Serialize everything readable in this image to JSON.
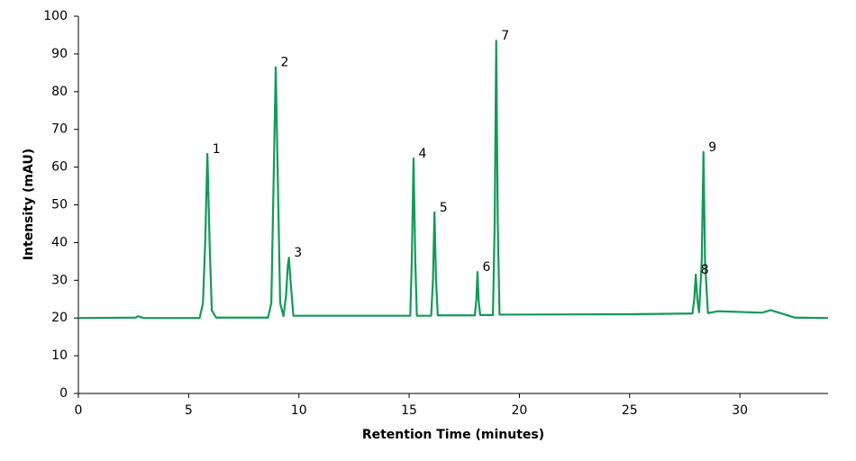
{
  "chart_data": {
    "type": "line",
    "x_label": "Retention Time (minutes)",
    "y_label": "Intensity (mAU)",
    "xlim": [
      0,
      34
    ],
    "xticks": [
      0,
      5,
      10,
      15,
      20,
      25,
      30
    ],
    "ylim": [
      0,
      100
    ],
    "yticks": [
      0,
      10,
      20,
      30,
      40,
      50,
      60,
      70,
      80,
      90,
      100
    ],
    "grid": false,
    "x": [
      0,
      2.6,
      2.7,
      2.9,
      3.0,
      5.5,
      5.65,
      5.75,
      5.85,
      5.95,
      6.05,
      6.25,
      8.6,
      8.75,
      8.85,
      8.95,
      9.05,
      9.15,
      9.3,
      9.42,
      9.5,
      9.55,
      9.62,
      9.75,
      13,
      15.05,
      15.12,
      15.2,
      15.28,
      15.35,
      16.0,
      16.08,
      16.15,
      16.22,
      16.3,
      17.98,
      18.05,
      18.1,
      18.15,
      18.22,
      18.8,
      18.88,
      18.95,
      19.02,
      19.1,
      25,
      27.85,
      27.93,
      28.0,
      28.07,
      28.15,
      28.27,
      28.35,
      28.42,
      28.55,
      29.0,
      31.0,
      31.4,
      32.5,
      34
    ],
    "series": [
      {
        "color": "#139a58",
        "values": [
          20,
          20.1,
          20.5,
          20.1,
          20,
          20,
          24,
          40,
          63.5,
          40,
          22,
          20.1,
          20.1,
          24,
          55,
          86.5,
          55,
          24,
          20.5,
          26,
          34,
          36,
          30,
          20.6,
          20.6,
          20.6,
          35,
          62.3,
          35,
          20.6,
          20.6,
          30,
          48,
          30,
          20.7,
          20.7,
          25,
          32.2,
          25,
          20.8,
          20.8,
          45,
          93.5,
          45,
          20.9,
          21,
          21.2,
          25,
          31.5,
          25,
          21.5,
          35,
          64,
          35,
          21.3,
          21.8,
          21.4,
          22.1,
          20.1,
          20
        ]
      }
    ],
    "annotations": [
      {
        "text": "1",
        "x": 5.85,
        "y": 63.5
      },
      {
        "text": "2",
        "x": 8.95,
        "y": 86.5
      },
      {
        "text": "3",
        "x": 9.55,
        "y": 36
      },
      {
        "text": "4",
        "x": 15.2,
        "y": 62.3
      },
      {
        "text": "5",
        "x": 16.15,
        "y": 48
      },
      {
        "text": "6",
        "x": 18.1,
        "y": 32.2
      },
      {
        "text": "7",
        "x": 18.95,
        "y": 93.5
      },
      {
        "text": "8",
        "x": 28.0,
        "y": 31.5
      },
      {
        "text": "9",
        "x": 28.35,
        "y": 64
      }
    ]
  }
}
